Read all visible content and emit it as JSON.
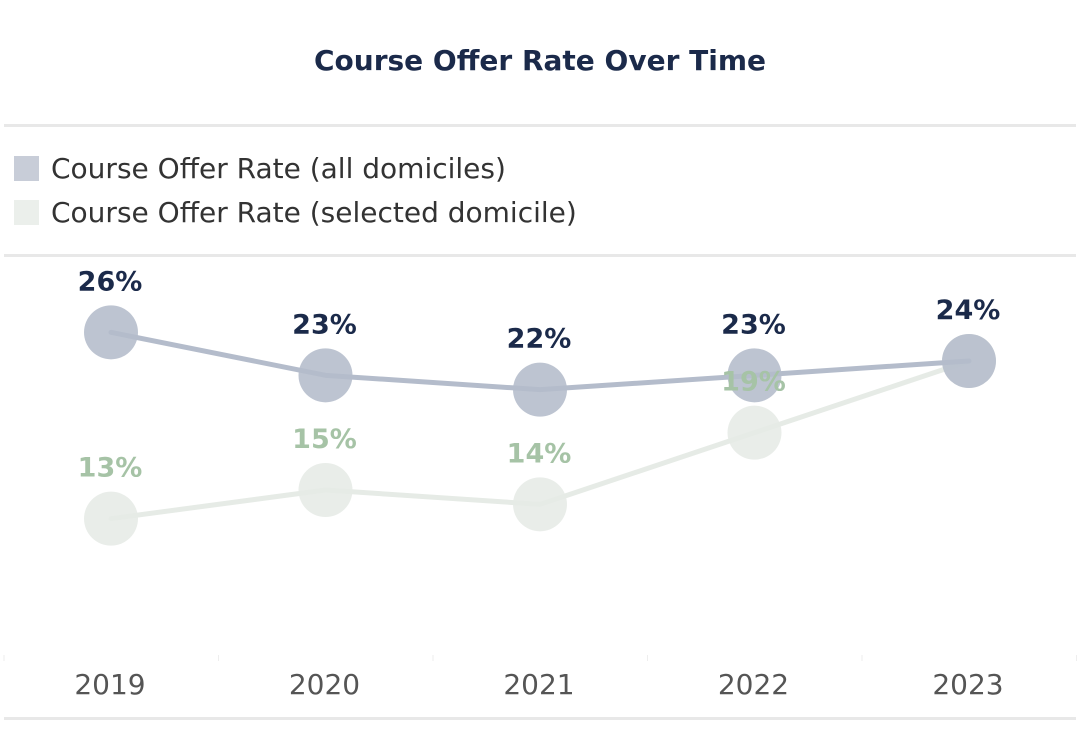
{
  "chart_data": {
    "type": "line",
    "title": "Course Offer Rate Over Time",
    "xlabel": "",
    "ylabel": "",
    "ylim": [
      0,
      30
    ],
    "x": [
      "2019",
      "2020",
      "2021",
      "2022",
      "2023"
    ],
    "legend_position": "top-left",
    "grid": false,
    "series": [
      {
        "name": "Course Offer Rate (all domiciles)",
        "values": [
          26,
          23,
          22,
          23,
          24
        ],
        "labels": [
          "26%",
          "23%",
          "22%",
          "23%",
          "24%"
        ],
        "color": "#b4bccb",
        "label_color": "#1b2a4a"
      },
      {
        "name": "Course Offer Rate (selected domicile)",
        "values": [
          13,
          15,
          14,
          19,
          24
        ],
        "labels": [
          "13%",
          "15%",
          "14%",
          "19%",
          ""
        ],
        "color": "#e6ebe6",
        "label_color": "#a6c3a6"
      }
    ]
  }
}
